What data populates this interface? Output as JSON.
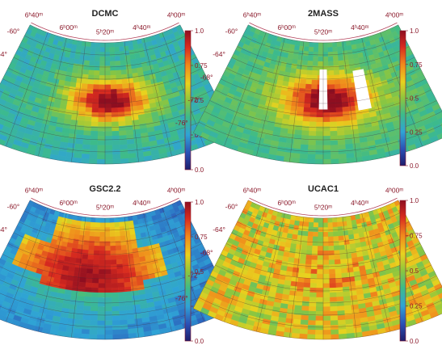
{
  "chart_data": [
    {
      "type": "heatmap",
      "title": "DCMC",
      "ra_labels": [
        "6ʰ40ᵐ",
        "6ʰ00ᵐ",
        "5ʰ20ᵐ",
        "4ʰ40ᵐ",
        "4ʰ00ᵐ"
      ],
      "dec_labels": [
        "-60°",
        "-64°",
        "-68°",
        "-72°",
        "-76°"
      ],
      "colorbar_ticks": [
        "1.0",
        "0.75",
        "0.5",
        "0.25",
        "0.0"
      ],
      "colorbar_range": [
        0.0,
        1.0
      ],
      "pattern": "central_peak",
      "background_level": 0.32,
      "peak_level": 0.92
    },
    {
      "type": "heatmap",
      "title": "2MASS",
      "ra_labels": [
        "6ʰ40ᵐ",
        "6ʰ00ᵐ",
        "5ʰ20ᵐ",
        "4ʰ40ᵐ",
        "4ʰ00ᵐ"
      ],
      "dec_labels": [
        "-60°",
        "-64°",
        "-68°",
        "-72°",
        "-76°"
      ],
      "colorbar_ticks": [
        "1.0",
        "0.75",
        "0.5",
        "0.25",
        "0.0"
      ],
      "colorbar_range": [
        0.0,
        1.0
      ],
      "pattern": "central_peak_with_gaps",
      "background_level": 0.38,
      "peak_level": 0.95
    },
    {
      "type": "heatmap",
      "title": "GSC2.2",
      "ra_labels": [
        "6ʰ40ᵐ",
        "6ʰ00ᵐ",
        "5ʰ20ᵐ",
        "4ʰ40ᵐ",
        "4ʰ00ᵐ"
      ],
      "dec_labels": [
        "-60°",
        "-64°",
        "-68°",
        "-72°",
        "-76°"
      ],
      "colorbar_ticks": [
        "1.0",
        "0.75",
        "0.5",
        "0.25",
        "0.0"
      ],
      "colorbar_range": [
        0.0,
        1.0
      ],
      "pattern": "plate_cross",
      "background_level": 0.12,
      "peak_level": 0.9
    },
    {
      "type": "heatmap",
      "title": "UCAC1",
      "ra_labels": [
        "6ʰ40ᵐ",
        "6ʰ00ᵐ",
        "5ʰ20ᵐ",
        "4ʰ40ᵐ",
        "4ʰ00ᵐ"
      ],
      "dec_labels": [
        "-60°",
        "-64°",
        "-68°",
        "-72°",
        "-76°"
      ],
      "colorbar_ticks": [
        "1.0",
        "0.75",
        "0.5",
        "0.25",
        "0.0"
      ],
      "colorbar_range": [
        0.0,
        1.0
      ],
      "pattern": "uniform_noisy",
      "background_level": 0.6,
      "peak_level": 0.75
    }
  ]
}
